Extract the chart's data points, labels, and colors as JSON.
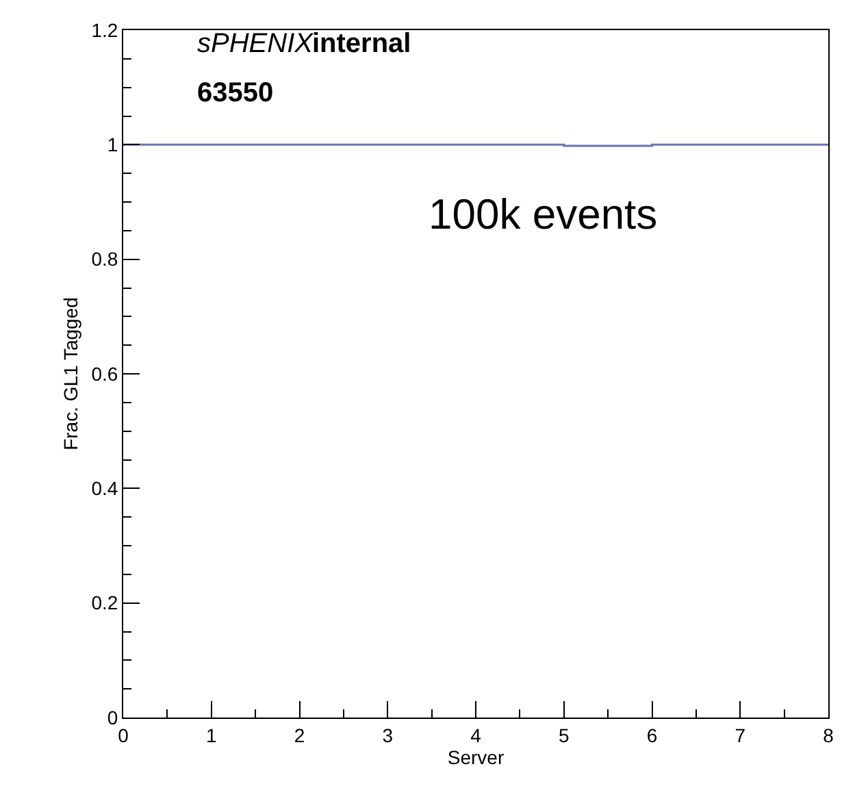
{
  "chart_data": {
    "type": "histogram",
    "xlabel": "Server",
    "ylabel": "Frac. GL1 Tagged",
    "annotations": [
      "sPHENIX",
      "internal",
      "63550",
      "100k events"
    ],
    "bins": [
      0,
      1,
      2,
      3,
      4,
      5,
      6,
      7,
      8
    ],
    "values": [
      1,
      1,
      1,
      1,
      1,
      0.998,
      1,
      1
    ],
    "color": "#6b70c4",
    "xlim": [
      0,
      8
    ],
    "xticks": [
      0,
      1,
      2,
      3,
      4,
      5,
      6,
      7,
      8
    ],
    "ylim": [
      0,
      1.2
    ],
    "yticks": [
      0,
      0.2,
      0.4,
      0.6,
      0.8,
      1,
      1.2
    ],
    "grid": false,
    "legend": false
  }
}
